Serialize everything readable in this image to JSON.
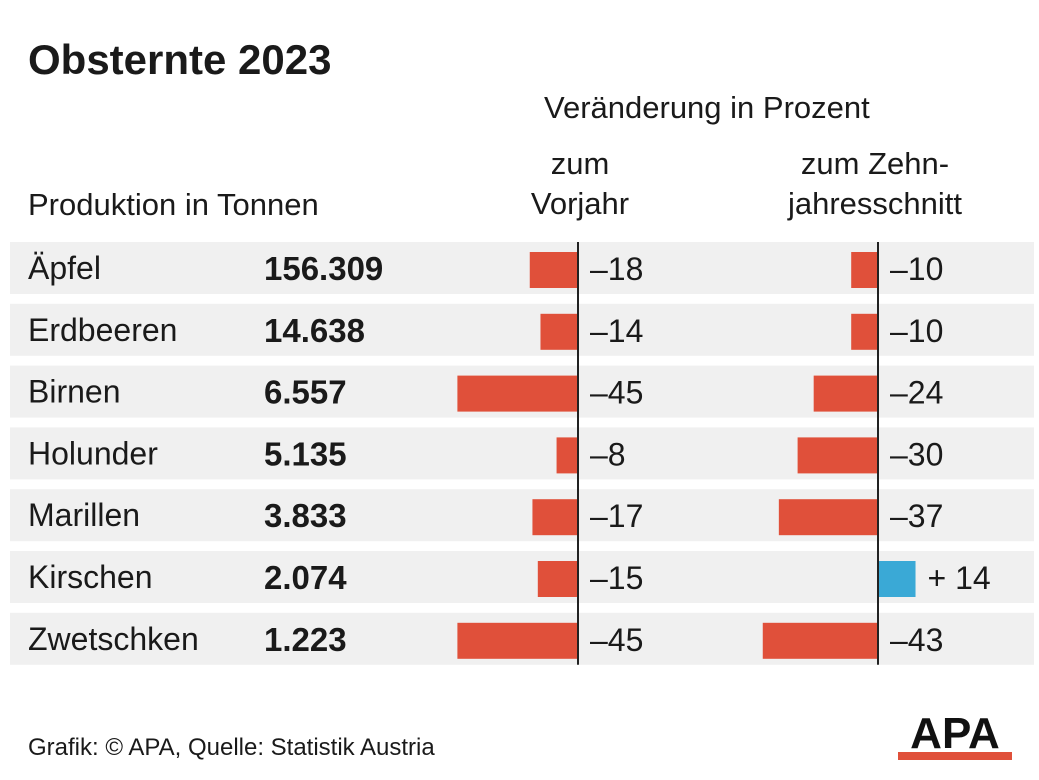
{
  "title": "Obsternte 2023",
  "headers": {
    "change": "Veränderung in Prozent",
    "production": "Produktion in Tonnen",
    "prev_year": [
      "zum",
      "Vorjahr"
    ],
    "ten_year": [
      "zum Zehn-",
      "jahresschnitt"
    ]
  },
  "source": "Grafik: © APA, Quelle: Statistik Austria",
  "logo_text": "APA",
  "colors": {
    "negative": "#e0503a",
    "positive": "#3aa9d6",
    "row_bg": "#f0f0f0",
    "axis": "#222222"
  },
  "chart_data": {
    "type": "bar",
    "categories": [
      "Äpfel",
      "Erdbeeren",
      "Birnen",
      "Holunder",
      "Marillen",
      "Kirschen",
      "Zwetschken"
    ],
    "production_labels": [
      "156.309",
      "14.638",
      "6.557",
      "5.135",
      "3.833",
      "2.074",
      "1.223"
    ],
    "series": [
      {
        "values": [
          -18,
          -14,
          -45,
          -8,
          -17,
          -15,
          -45
        ],
        "labels": [
          "–18",
          "–14",
          "–45",
          "–8",
          "–17",
          "–15",
          "–45"
        ]
      },
      {
        "values": [
          -10,
          -10,
          -24,
          -30,
          -37,
          14,
          -43
        ],
        "labels": [
          "–10",
          "–10",
          "–24",
          "–30",
          "–37",
          "+ 14",
          "–43"
        ]
      }
    ]
  }
}
